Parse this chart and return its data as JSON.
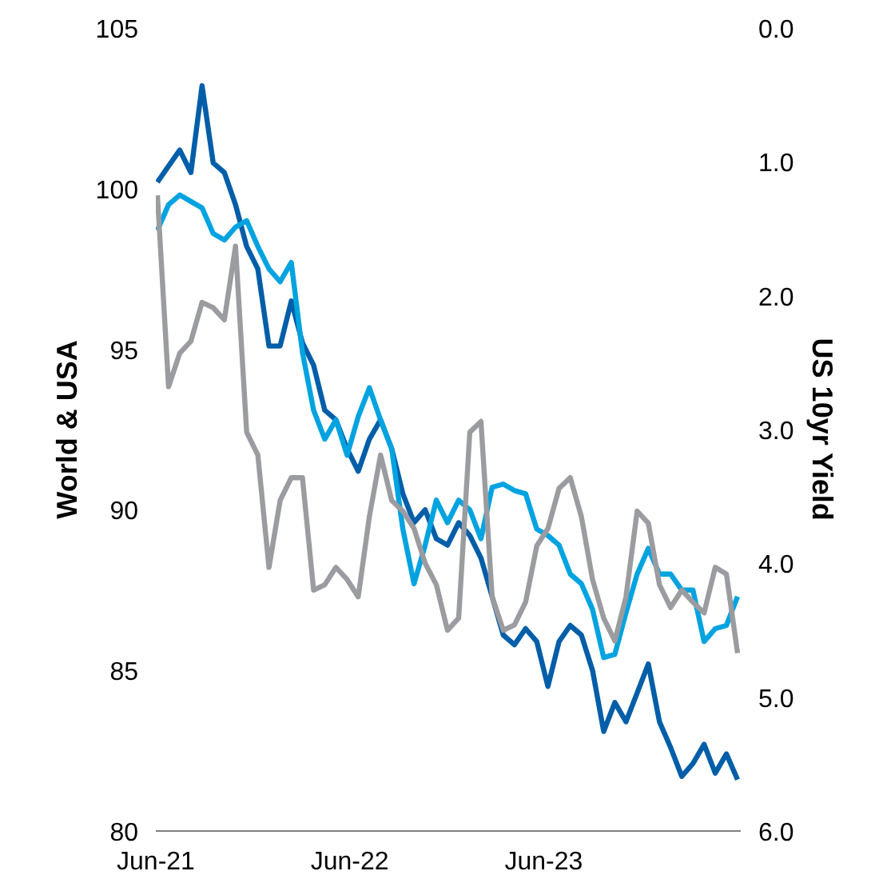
{
  "chart_data": {
    "type": "line",
    "ylabel": "World & USA",
    "y2label": "US 10yr Yield",
    "x": [
      "2021-06-04",
      "2021-06-25",
      "2021-07-16",
      "2021-08-06",
      "2021-08-27",
      "2021-09-17",
      "2021-10-08",
      "2021-10-29",
      "2021-11-19",
      "2021-12-10",
      "2021-12-31",
      "2022-01-21",
      "2022-02-11",
      "2022-03-04",
      "2022-03-25",
      "2022-04-15",
      "2022-05-06",
      "2022-05-27",
      "2022-06-17",
      "2022-07-08",
      "2022-07-29",
      "2022-08-19",
      "2022-09-09",
      "2022-09-30",
      "2022-10-21",
      "2022-11-11",
      "2022-12-02",
      "2022-12-23",
      "2023-01-13",
      "2023-02-03",
      "2023-02-24",
      "2023-03-17",
      "2023-04-07",
      "2023-04-28",
      "2023-05-19",
      "2023-06-09",
      "2023-06-30",
      "2023-07-21",
      "2023-08-11",
      "2023-09-01",
      "2023-09-22",
      "2023-10-13",
      "2023-11-03",
      "2023-11-24",
      "2023-12-15",
      "2024-01-05",
      "2024-01-26",
      "2024-02-16",
      "2024-03-08",
      "2024-03-29",
      "2024-04-19",
      "2024-05-10",
      "2024-05-31"
    ],
    "series": [
      {
        "color": "#005ea8",
        "values": [
          100.2,
          100.7,
          101.2,
          100.5,
          103.2,
          100.8,
          100.5,
          99.5,
          98.2,
          97.5,
          95.1,
          95.1,
          96.5,
          95.2,
          94.5,
          93.1,
          92.8,
          91.9,
          91.2,
          92.2,
          92.8,
          91.9,
          90.5,
          89.6,
          90.0,
          89.1,
          88.9,
          89.6,
          89.2,
          88.5,
          87.3,
          86.1,
          85.8,
          86.3,
          85.9,
          84.5,
          85.9,
          86.4,
          86.1,
          85.0,
          83.1,
          84.0,
          83.4,
          84.3,
          85.2,
          83.4,
          82.6,
          81.7,
          82.1,
          82.7,
          81.8,
          82.4,
          81.6
        ]
      },
      {
        "color": "#00a3e0",
        "values": [
          98.7,
          99.5,
          99.8,
          99.6,
          99.4,
          98.6,
          98.4,
          98.8,
          99.0,
          98.2,
          97.5,
          97.1,
          97.7,
          94.9,
          93.1,
          92.2,
          92.8,
          91.7,
          92.9,
          93.8,
          92.8,
          91.9,
          89.4,
          87.7,
          88.9,
          90.3,
          89.6,
          90.3,
          90.0,
          89.1,
          90.7,
          90.8,
          90.6,
          90.5,
          89.4,
          89.2,
          88.9,
          88.0,
          87.7,
          86.9,
          85.4,
          85.5,
          86.8,
          88.0,
          88.8,
          88.0,
          88.0,
          87.5,
          87.5,
          85.9,
          86.3,
          86.4,
          87.3
        ]
      },
      {
        "color": "#9b9ca0",
        "axis": "y2",
        "values": [
          1.25,
          2.68,
          2.43,
          2.34,
          2.05,
          2.09,
          2.18,
          1.63,
          3.02,
          3.19,
          4.03,
          3.53,
          3.36,
          3.36,
          4.2,
          4.16,
          4.03,
          4.12,
          4.25,
          3.65,
          3.19,
          3.53,
          3.61,
          3.74,
          4.0,
          4.16,
          4.5,
          4.41,
          3.02,
          2.94,
          4.25,
          4.5,
          4.46,
          4.29,
          3.87,
          3.74,
          3.44,
          3.36,
          3.65,
          4.12,
          4.41,
          4.58,
          4.25,
          3.61,
          3.7,
          4.16,
          4.33,
          4.2,
          4.29,
          4.37,
          4.03,
          4.08,
          4.67
        ]
      }
    ],
    "xlim": [
      "2021-06-01",
      "2024-06-06"
    ],
    "xticks": [
      {
        "value": "2021-06-01",
        "label": "Jun-21"
      },
      {
        "value": "2022-06-01",
        "label": "Jun-22"
      },
      {
        "value": "2023-06-01",
        "label": "Jun-23"
      }
    ],
    "ylim": [
      80,
      105
    ],
    "yticks": [
      80,
      85,
      90,
      95,
      100,
      105
    ],
    "y2lim": [
      6.0,
      0.0
    ],
    "y2ticks": [
      {
        "value": 0,
        "label": "0.0"
      },
      {
        "value": 1,
        "label": "1.0"
      },
      {
        "value": 2,
        "label": "2.0"
      },
      {
        "value": 3,
        "label": "3.0"
      },
      {
        "value": 4,
        "label": "4.0"
      },
      {
        "value": 5,
        "label": "5.0"
      },
      {
        "value": 6,
        "label": "6.0"
      }
    ],
    "grid": false,
    "line_style": "solid"
  }
}
